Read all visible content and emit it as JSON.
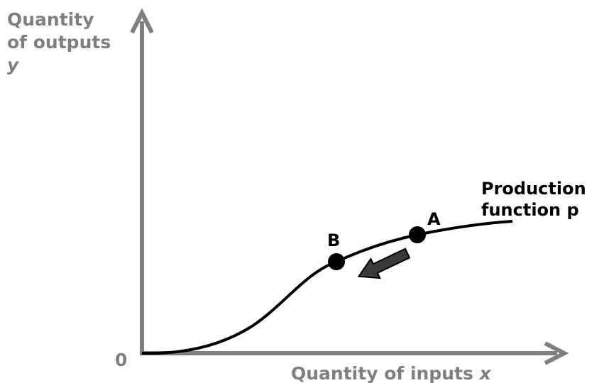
{
  "y_axis": {
    "label_lines": [
      "Quantity",
      "of outputs"
    ],
    "variable": "y"
  },
  "x_axis": {
    "label": "Quantity of inputs",
    "variable": "x"
  },
  "origin": "0",
  "curve": {
    "label_lines": [
      "Production",
      "function p"
    ]
  },
  "points": [
    {
      "label": "A"
    },
    {
      "label": "B"
    }
  ]
}
